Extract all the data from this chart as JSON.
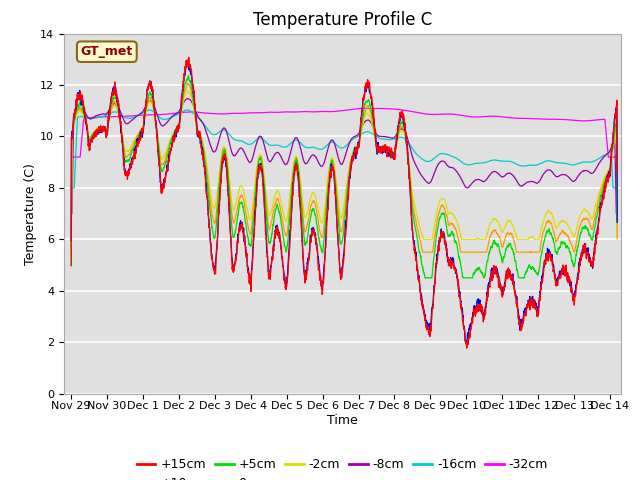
{
  "title": "Temperature Profile C",
  "xlabel": "Time",
  "ylabel": "Temperature (C)",
  "ylim": [
    0,
    14
  ],
  "yticks": [
    0,
    2,
    4,
    6,
    8,
    10,
    12,
    14
  ],
  "x_start": -0.2,
  "x_end": 15.3,
  "xtick_labels": [
    "Nov 29",
    "Nov 30",
    "Dec 1",
    "Dec 2",
    "Dec 3",
    "Dec 4",
    "Dec 5",
    "Dec 6",
    "Dec 7",
    "Dec 8",
    "Dec 9",
    "Dec 10",
    "Dec 11",
    "Dec 12",
    "Dec 13",
    "Dec 14"
  ],
  "xtick_positions": [
    0,
    1,
    2,
    3,
    4,
    5,
    6,
    7,
    8,
    9,
    10,
    11,
    12,
    13,
    14,
    15
  ],
  "legend_label": "GT_met",
  "series_colors": {
    "+15cm": "#FF0000",
    "+10cm": "#0000EE",
    "+5cm": "#00DD00",
    "0cm": "#FF9900",
    "-2cm": "#DDDD00",
    "-8cm": "#9900AA",
    "-16cm": "#00CCCC",
    "-32cm": "#FF00FF"
  },
  "background_color": "#FFFFFF",
  "plot_bg_color": "#E0E0E0",
  "grid_color": "#FFFFFF",
  "title_fontsize": 12,
  "axis_fontsize": 9,
  "tick_fontsize": 8,
  "legend_fontsize": 9
}
